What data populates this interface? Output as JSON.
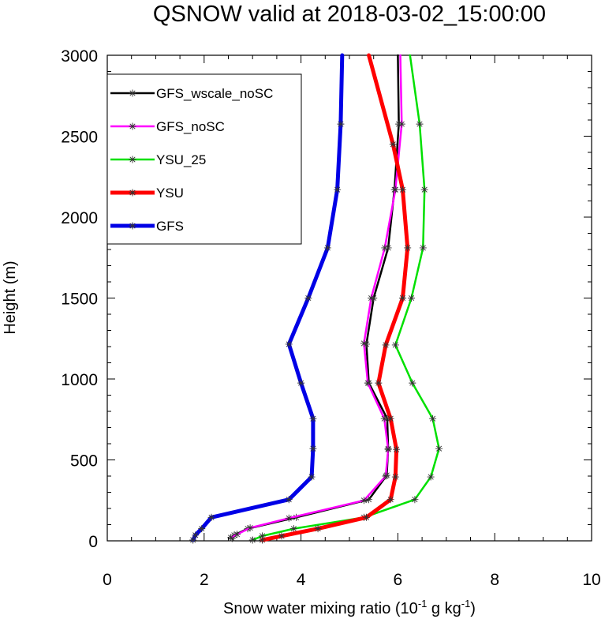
{
  "chart_data": {
    "type": "line",
    "title": "QSNOW valid at 2018-03-02_15:00:00",
    "xlabel": "Snow water mixing ratio (10",
    "xlabel_sup1": "-1",
    "xlabel_mid": " g kg",
    "xlabel_sup2": "-1",
    "xlabel_end": ")",
    "ylabel": "Height (m)",
    "xlim": [
      0,
      10
    ],
    "ylim": [
      0,
      3000
    ],
    "xticks": [
      "0",
      "2",
      "4",
      "6",
      "8",
      "10"
    ],
    "yticks": [
      "0",
      "500",
      "1000",
      "1500",
      "2000",
      "2500",
      "3000"
    ],
    "legend_position": "top-left",
    "grid": false,
    "series": [
      {
        "name": "GFS_wscale_noSC",
        "color": "#000000",
        "width": 2.5,
        "points": [
          [
            2.58,
            15
          ],
          [
            2.62,
            35
          ],
          [
            2.9,
            75
          ],
          [
            3.9,
            145
          ],
          [
            5.4,
            255
          ],
          [
            5.77,
            405
          ],
          [
            5.8,
            570
          ],
          [
            5.78,
            755
          ],
          [
            5.4,
            975
          ],
          [
            5.35,
            1215
          ],
          [
            5.5,
            1500
          ],
          [
            5.8,
            1810
          ],
          [
            5.93,
            2170
          ],
          [
            6.02,
            2575
          ],
          [
            6.0,
            3000
          ]
        ]
      },
      {
        "name": "GFS_noSC",
        "color": "#ff00ff",
        "width": 2.5,
        "points": [
          [
            2.55,
            20
          ],
          [
            2.68,
            40
          ],
          [
            2.95,
            80
          ],
          [
            3.75,
            140
          ],
          [
            5.3,
            250
          ],
          [
            5.75,
            400
          ],
          [
            5.8,
            565
          ],
          [
            5.72,
            755
          ],
          [
            5.38,
            975
          ],
          [
            5.3,
            1220
          ],
          [
            5.45,
            1500
          ],
          [
            5.73,
            1810
          ],
          [
            5.95,
            2170
          ],
          [
            6.08,
            2575
          ],
          [
            6.05,
            3000
          ]
        ]
      },
      {
        "name": "YSU_25",
        "color": "#00e000",
        "width": 2.5,
        "points": [
          [
            3.0,
            5
          ],
          [
            3.2,
            30
          ],
          [
            3.85,
            75
          ],
          [
            5.3,
            145
          ],
          [
            6.35,
            255
          ],
          [
            6.68,
            395
          ],
          [
            6.85,
            570
          ],
          [
            6.72,
            755
          ],
          [
            6.3,
            975
          ],
          [
            5.95,
            1210
          ],
          [
            6.28,
            1500
          ],
          [
            6.52,
            1810
          ],
          [
            6.55,
            2170
          ],
          [
            6.45,
            2575
          ],
          [
            6.25,
            3000
          ]
        ]
      },
      {
        "name": "YSU",
        "color": "#ff0000",
        "width": 5,
        "points": [
          [
            3.2,
            5
          ],
          [
            3.6,
            30
          ],
          [
            4.35,
            75
          ],
          [
            5.35,
            145
          ],
          [
            5.85,
            255
          ],
          [
            5.95,
            395
          ],
          [
            5.97,
            565
          ],
          [
            5.85,
            755
          ],
          [
            5.6,
            975
          ],
          [
            5.75,
            1210
          ],
          [
            6.1,
            1500
          ],
          [
            6.2,
            1810
          ],
          [
            6.1,
            2170
          ],
          [
            5.9,
            2450
          ],
          [
            5.4,
            3000
          ]
        ]
      },
      {
        "name": "GFS",
        "color": "#0000e6",
        "width": 5,
        "points": [
          [
            1.77,
            5
          ],
          [
            1.82,
            35
          ],
          [
            1.95,
            75
          ],
          [
            2.15,
            145
          ],
          [
            3.75,
            255
          ],
          [
            4.22,
            395
          ],
          [
            4.25,
            570
          ],
          [
            4.25,
            755
          ],
          [
            4.0,
            975
          ],
          [
            3.75,
            1215
          ],
          [
            4.15,
            1500
          ],
          [
            4.55,
            1810
          ],
          [
            4.75,
            2170
          ],
          [
            4.82,
            2575
          ],
          [
            4.85,
            3000
          ]
        ]
      }
    ]
  }
}
